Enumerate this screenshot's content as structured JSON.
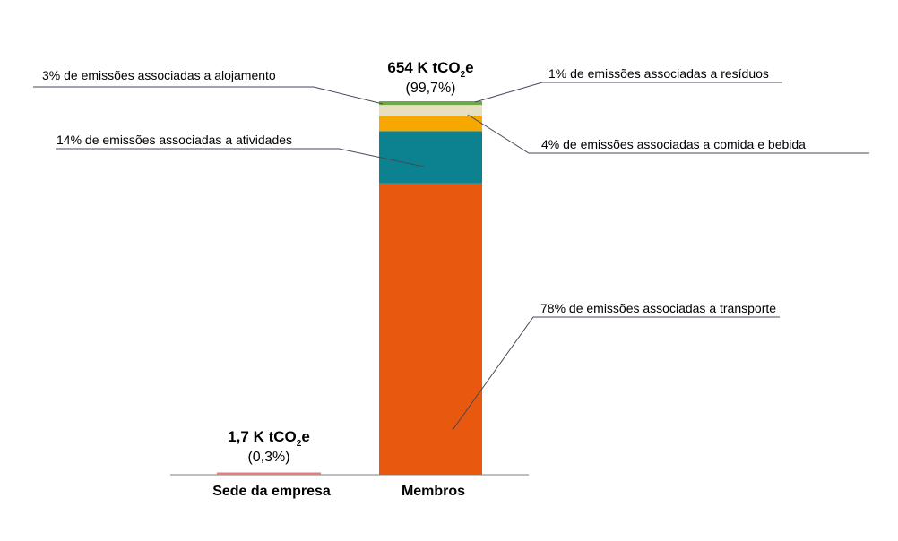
{
  "chart_data": {
    "type": "bar",
    "stacked": true,
    "categories": [
      "Sede da empresa",
      "Membros"
    ],
    "value_unit": "K tCO2e",
    "ylim": [
      0,
      654
    ],
    "grid": false,
    "legend": "none",
    "bars": [
      {
        "category": "Sede da empresa",
        "total": 1.7,
        "total_label_prefix": "1,7 K tCO",
        "total_label_sub": "2",
        "total_label_suffix": "e",
        "share_label": "(0,3%)",
        "color": "#E67C7C",
        "segments": [
          {
            "value": 1.7,
            "color": "#E67C7C"
          }
        ]
      },
      {
        "category": "Membros",
        "total": 654,
        "total_label_prefix": "654 K  tCO",
        "total_label_sub": "2",
        "total_label_suffix": "e",
        "share_label": "(99,7%)",
        "segments": [
          {
            "value": 510.1,
            "share": 78,
            "color": "#E8580F",
            "annotation": "78% de emissões associadas a transporte",
            "annotation_side": "right"
          },
          {
            "value": 91.6,
            "share": 14,
            "color": "#0C8290",
            "annotation": "14% de emissões associadas a atividades",
            "annotation_side": "left"
          },
          {
            "value": 26.2,
            "share": 4,
            "color": "#F6A800",
            "annotation": "4% de emissões associadas a comida e bebida",
            "annotation_side": "right"
          },
          {
            "value": 19.6,
            "share": 3,
            "color": "#E6DFC0",
            "annotation": "3% de emissões associadas a alojamento",
            "annotation_side": "left"
          },
          {
            "value": 6.5,
            "share": 1,
            "color": "#6EA945",
            "annotation": "1% de emissões associadas a resíduos",
            "annotation_side": "right"
          }
        ]
      }
    ]
  }
}
